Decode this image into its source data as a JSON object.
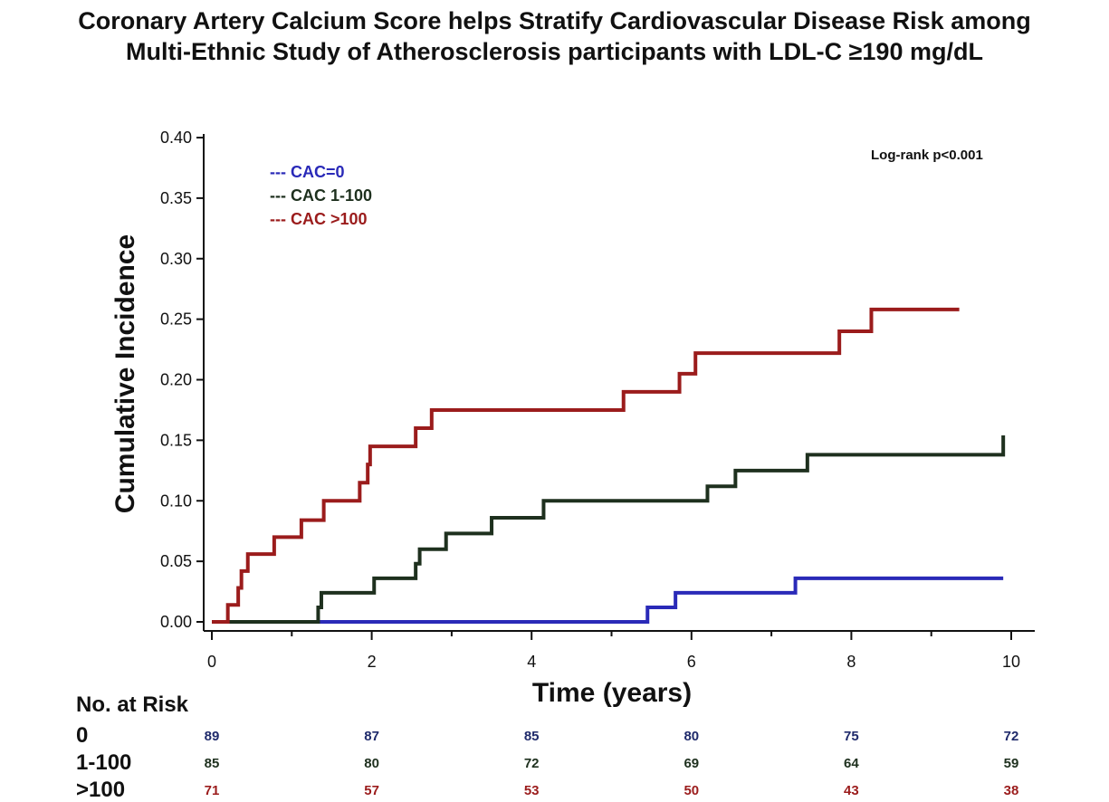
{
  "title_lines": [
    "Coronary Artery Calcium Score helps Stratify Cardiovascular Disease Risk among",
    "Multi-Ethnic Study of Atherosclerosis participants with LDL-C ≥190 mg/dL"
  ],
  "chart_data": {
    "type": "line",
    "step": true,
    "xlabel": "Time (years)",
    "ylabel": "Cumulative Incidence",
    "xlim": [
      0,
      10
    ],
    "ylim": [
      0,
      0.4
    ],
    "x_ticks": [
      0,
      2,
      4,
      6,
      8,
      10
    ],
    "y_ticks": [
      0.0,
      0.05,
      0.1,
      0.15,
      0.2,
      0.25,
      0.3,
      0.35,
      0.4
    ],
    "x_tick_labels": [
      "0",
      "2",
      "4",
      "6",
      "8",
      "10"
    ],
    "y_tick_labels": [
      "0.00",
      "0.05",
      "0.10",
      "0.15",
      "0.20",
      "0.25",
      "0.30",
      "0.35",
      "0.40"
    ],
    "grid": false,
    "legend_position": "top-left",
    "annotation": "Log-rank p<0.001",
    "series": [
      {
        "name": "CAC=0",
        "legend_label": "--- CAC=0",
        "color": "#2a2ab8",
        "points": [
          [
            0,
            0
          ],
          [
            1.35,
            0
          ],
          [
            5.45,
            0.012
          ],
          [
            5.8,
            0.024
          ],
          [
            7.3,
            0.036
          ],
          [
            9.9,
            0.036
          ]
        ]
      },
      {
        "name": "CAC 1-100",
        "legend_label": "--- CAC 1-100",
        "color": "#1e301e",
        "points": [
          [
            0,
            0
          ],
          [
            1.33,
            0.012
          ],
          [
            1.37,
            0.024
          ],
          [
            2.03,
            0.036
          ],
          [
            2.55,
            0.048
          ],
          [
            2.6,
            0.06
          ],
          [
            2.93,
            0.073
          ],
          [
            3.5,
            0.086
          ],
          [
            4.15,
            0.1
          ],
          [
            6.2,
            0.112
          ],
          [
            6.55,
            0.125
          ],
          [
            7.45,
            0.138
          ],
          [
            9.9,
            0.154
          ]
        ]
      },
      {
        "name": "CAC >100",
        "legend_label": "--- CAC >100",
        "color": "#9b1c1c",
        "points": [
          [
            0,
            0
          ],
          [
            0.2,
            0.014
          ],
          [
            0.33,
            0.028
          ],
          [
            0.37,
            0.042
          ],
          [
            0.45,
            0.056
          ],
          [
            0.78,
            0.07
          ],
          [
            1.12,
            0.084
          ],
          [
            1.4,
            0.1
          ],
          [
            1.85,
            0.115
          ],
          [
            1.95,
            0.13
          ],
          [
            1.98,
            0.145
          ],
          [
            2.55,
            0.16
          ],
          [
            2.75,
            0.175
          ],
          [
            5.15,
            0.19
          ],
          [
            5.85,
            0.205
          ],
          [
            6.05,
            0.222
          ],
          [
            7.85,
            0.24
          ],
          [
            8.25,
            0.258
          ],
          [
            9.35,
            0.258
          ]
        ]
      }
    ]
  },
  "risk_table": {
    "header": "No. at Risk",
    "rows": [
      {
        "label": "0",
        "color": "#1f2a6b",
        "values": [
          "89",
          "87",
          "85",
          "80",
          "75",
          "72"
        ]
      },
      {
        "label": "1-100",
        "color": "#1e301e",
        "values": [
          "85",
          "80",
          "72",
          "69",
          "64",
          "59"
        ]
      },
      {
        "label": ">100",
        "color": "#9b1c1c",
        "values": [
          "71",
          "57",
          "53",
          "50",
          "43",
          "38"
        ]
      }
    ]
  }
}
